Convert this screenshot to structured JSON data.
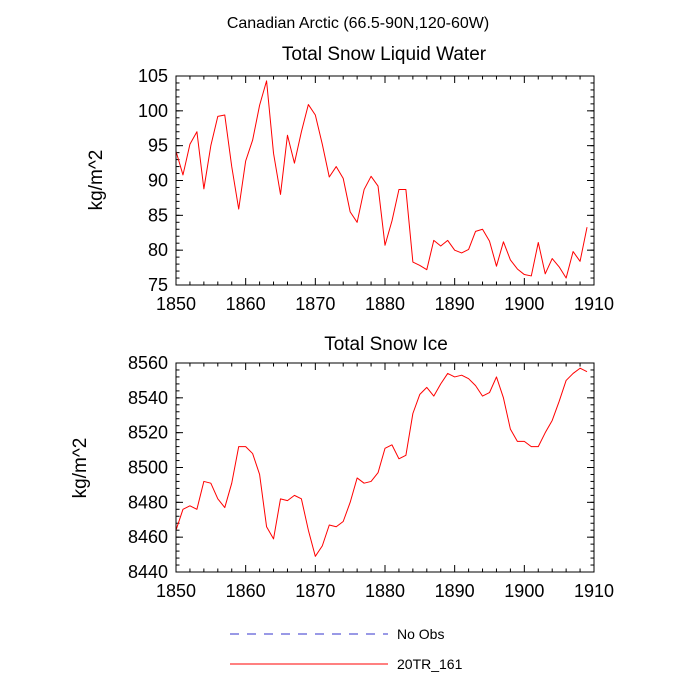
{
  "figure_title": "Canadian Arctic (66.5-90N,120-60W)",
  "colors": {
    "series": "#ff0000",
    "no_obs": "#3333cc",
    "axis": "#000000"
  },
  "legend": {
    "items": [
      {
        "label": "No Obs",
        "style": "dashed",
        "color": "#3333cc"
      },
      {
        "label": "20TR_161",
        "style": "solid",
        "color": "#ff0000"
      }
    ]
  },
  "chart_data": [
    {
      "type": "line",
      "title": "Total Snow Liquid Water",
      "xlabel": "",
      "ylabel": "kg/m^2",
      "xlim": [
        1850,
        1910
      ],
      "ylim": [
        75,
        105
      ],
      "xticks": [
        1850,
        1860,
        1870,
        1880,
        1890,
        1900,
        1910
      ],
      "yticks": [
        75,
        80,
        85,
        90,
        95,
        100,
        105
      ],
      "grid": false,
      "series": [
        {
          "name": "20TR_161",
          "x": [
            1850,
            1851,
            1852,
            1853,
            1854,
            1855,
            1856,
            1857,
            1858,
            1859,
            1860,
            1861,
            1862,
            1863,
            1864,
            1865,
            1866,
            1867,
            1868,
            1869,
            1870,
            1871,
            1872,
            1873,
            1874,
            1875,
            1876,
            1877,
            1878,
            1879,
            1880,
            1881,
            1882,
            1883,
            1884,
            1885,
            1886,
            1887,
            1888,
            1889,
            1890,
            1891,
            1892,
            1893,
            1894,
            1895,
            1896,
            1897,
            1898,
            1899,
            1900,
            1901,
            1902,
            1903,
            1904,
            1905,
            1906,
            1907,
            1908,
            1909
          ],
          "values": [
            94.2,
            90.8,
            95.2,
            97.0,
            88.8,
            95.0,
            99.2,
            99.4,
            92.0,
            85.9,
            92.8,
            95.8,
            100.8,
            104.3,
            93.9,
            88.0,
            96.5,
            92.5,
            97.0,
            100.9,
            99.4,
            95.2,
            90.5,
            92.0,
            90.3,
            85.5,
            84.0,
            88.7,
            90.6,
            89.2,
            80.7,
            84.2,
            88.7,
            88.7,
            78.3,
            77.8,
            77.2,
            81.4,
            80.6,
            81.4,
            80.0,
            79.6,
            80.1,
            82.7,
            83.0,
            81.3,
            77.7,
            81.2,
            78.6,
            77.3,
            76.5,
            76.3,
            81.1,
            76.6,
            78.8,
            77.6,
            76.0,
            79.8,
            78.4,
            83.3
          ]
        }
      ]
    },
    {
      "type": "line",
      "title": "Total Snow Ice",
      "xlabel": "",
      "ylabel": "kg/m^2",
      "xlim": [
        1850,
        1910
      ],
      "ylim": [
        8440,
        8560
      ],
      "xticks": [
        1850,
        1860,
        1870,
        1880,
        1890,
        1900,
        1910
      ],
      "yticks": [
        8440,
        8460,
        8480,
        8500,
        8520,
        8540,
        8560
      ],
      "grid": false,
      "series": [
        {
          "name": "20TR_161",
          "x": [
            1850,
            1851,
            1852,
            1853,
            1854,
            1855,
            1856,
            1857,
            1858,
            1859,
            1860,
            1861,
            1862,
            1863,
            1864,
            1865,
            1866,
            1867,
            1868,
            1869,
            1870,
            1871,
            1872,
            1873,
            1874,
            1875,
            1876,
            1877,
            1878,
            1879,
            1880,
            1881,
            1882,
            1883,
            1884,
            1885,
            1886,
            1887,
            1888,
            1889,
            1890,
            1891,
            1892,
            1893,
            1894,
            1895,
            1896,
            1897,
            1898,
            1899,
            1900,
            1901,
            1902,
            1903,
            1904,
            1905,
            1906,
            1907,
            1908,
            1909
          ],
          "values": [
            8464,
            8476,
            8478,
            8476,
            8492,
            8491,
            8482,
            8477,
            8491,
            8512,
            8512,
            8508,
            8496,
            8466,
            8459,
            8482,
            8481,
            8484,
            8482,
            8464,
            8449,
            8455,
            8467,
            8466,
            8469,
            8480,
            8494,
            8491,
            8492,
            8497,
            8511,
            8513,
            8505,
            8507,
            8531,
            8542,
            8546,
            8541,
            8548,
            8554,
            8552,
            8553,
            8551,
            8547,
            8541,
            8543,
            8552,
            8540,
            8522,
            8515,
            8515,
            8512,
            8512,
            8520,
            8527,
            8538,
            8550,
            8554,
            8557,
            8555
          ]
        }
      ]
    }
  ]
}
